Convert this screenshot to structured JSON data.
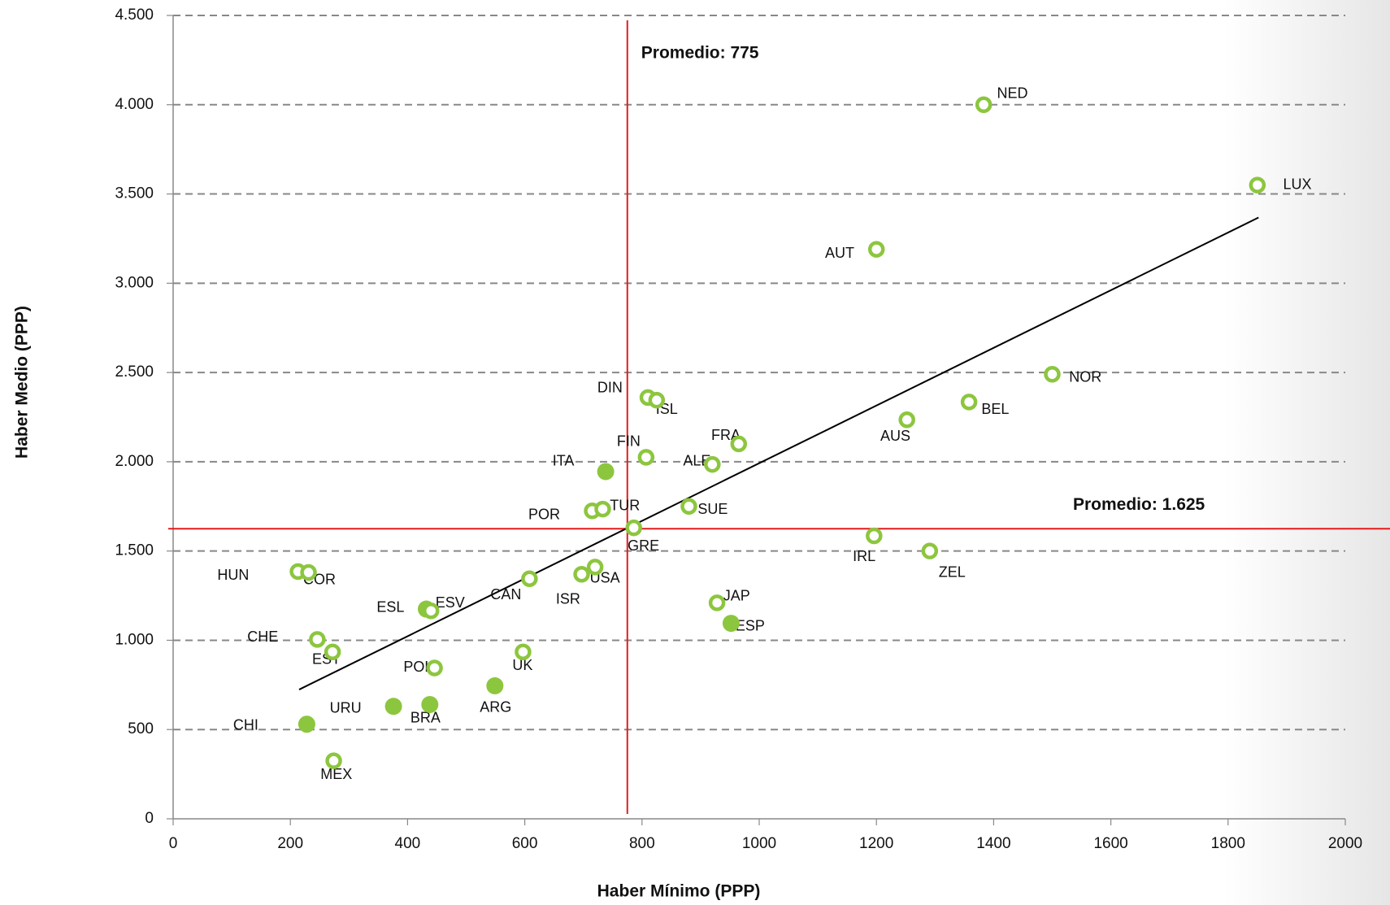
{
  "chart_data": {
    "type": "scatter",
    "xlabel": "Haber Mínimo (PPP)",
    "ylabel": "Haber Medio (PPP)",
    "xlim": [
      0,
      2000
    ],
    "ylim": [
      0,
      4500
    ],
    "xticks": [
      0,
      200,
      400,
      600,
      800,
      1000,
      1200,
      1400,
      1600,
      1800,
      2000
    ],
    "yticks": [
      0,
      500,
      {
        "value": 1000,
        "label": "1.000"
      },
      {
        "value": 1500,
        "label": "1.500"
      },
      {
        "value": 2000,
        "label": "2.000"
      },
      {
        "value": 2500,
        "label": "2.500"
      },
      {
        "value": 3000,
        "label": "3.000"
      },
      {
        "value": 3500,
        "label": "3.500"
      },
      {
        "value": 4000,
        "label": "4.000"
      },
      {
        "value": 4500,
        "label": "4.500"
      }
    ],
    "grid": true,
    "color": "#8cc63e",
    "points": {
      "labels": [
        "NED",
        "LUX",
        "AUT",
        "NOR",
        "BEL",
        "AUS",
        "DIN",
        "ISL",
        "FRA",
        "FIN",
        "ALE",
        "ITA",
        "POR",
        "TUR",
        "SUE",
        "GRE",
        "IRL",
        "ZEL",
        "HUN",
        "COR",
        "CAN",
        "ISR",
        "USA",
        "JAP",
        "ESP",
        "ESL",
        "ESV",
        "CHE",
        "EST",
        "POL",
        "UK",
        "ARG",
        "URU",
        "BRA",
        "CHI",
        "MEX"
      ],
      "x": [
        1383,
        1850,
        1200,
        1500,
        1358,
        1252,
        810,
        825,
        965,
        807,
        920,
        738,
        715,
        733,
        880,
        786,
        1196,
        1291,
        213,
        231,
        608,
        697,
        720,
        928,
        952,
        432,
        440,
        246,
        272,
        446,
        597,
        549,
        376,
        438,
        228,
        274
      ],
      "y": [
        4000,
        3550,
        3190,
        2490,
        2335,
        2235,
        2360,
        2345,
        2100,
        2025,
        1985,
        1945,
        1725,
        1735,
        1750,
        1630,
        1585,
        1500,
        1385,
        1380,
        1345,
        1370,
        1410,
        1210,
        1095,
        1175,
        1165,
        1005,
        935,
        845,
        935,
        745,
        630,
        640,
        530,
        325
      ],
      "filled": [
        false,
        false,
        false,
        false,
        false,
        false,
        false,
        false,
        false,
        false,
        false,
        true,
        false,
        false,
        false,
        false,
        false,
        false,
        false,
        false,
        false,
        false,
        false,
        false,
        true,
        true,
        false,
        false,
        false,
        false,
        false,
        true,
        true,
        true,
        true,
        false
      ]
    },
    "trendline": {
      "color": "#000000",
      "x": [
        215,
        1852
      ],
      "y": [
        724,
        3368
      ]
    },
    "reference_lines": [
      {
        "axis": "x",
        "value": 775,
        "label": "Promedio: 775",
        "color": "#e31b1b"
      },
      {
        "axis": "y",
        "value": 1625,
        "label": "Promedio: 1.625",
        "color": "#e31b1b"
      }
    ]
  }
}
